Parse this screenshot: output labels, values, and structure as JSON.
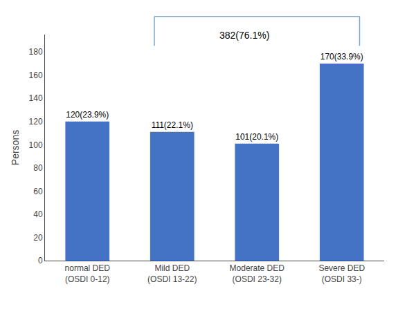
{
  "chart_data": {
    "type": "bar",
    "categories": [
      "normal DED\n(OSDI 0-12)",
      "Mild DED\n(OSDI 13-22)",
      "Moderate DED\n(OSDI 23-32)",
      "Severe DED\n(OSDI 33-)"
    ],
    "values": [
      120,
      111,
      101,
      170
    ],
    "value_labels": [
      "120(23.9%)",
      "111(22.1%)",
      "101(20.1%)",
      "170(33.9%)"
    ],
    "data_labels": true,
    "color": "#4472C4",
    "ylabel": "Persons",
    "ylim": [
      0,
      195
    ],
    "yticks": [
      0,
      20,
      40,
      60,
      80,
      100,
      120,
      140,
      160,
      180
    ],
    "grid": false,
    "annotations": [
      {
        "text": "382(76.1%)",
        "color": "#7DA7D9"
      }
    ]
  }
}
